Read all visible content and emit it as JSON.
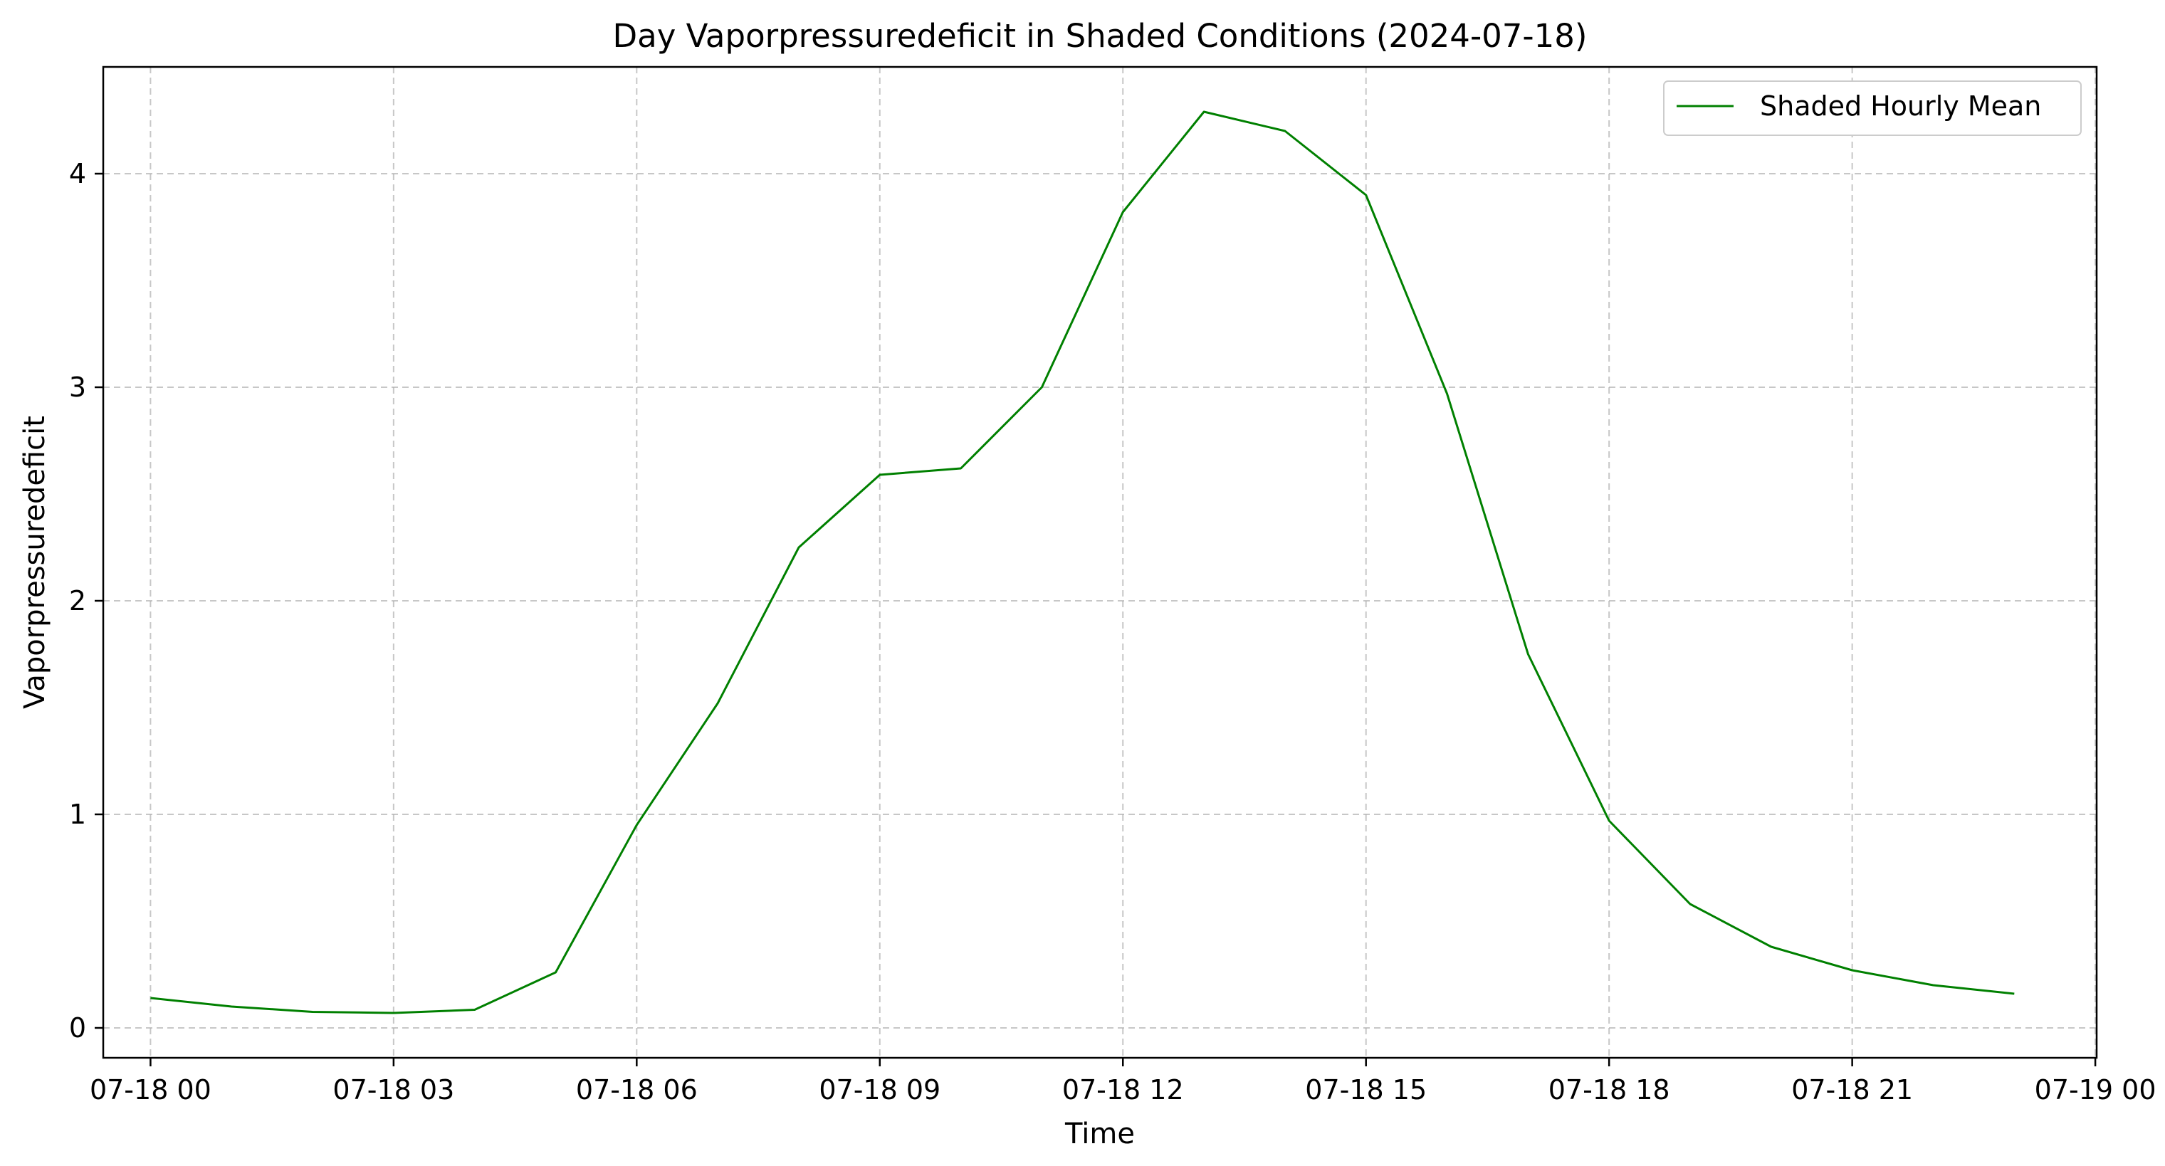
{
  "chart_data": {
    "type": "line",
    "title": "Day Vaporpressuredeficit in Shaded Conditions (2024-07-18)",
    "xlabel": "Time",
    "ylabel": "Vaporpressuredeficit",
    "xlim": [
      "2024-07-17 23:25",
      "2024-07-19 00:01"
    ],
    "ylim": [
      -0.14,
      4.5
    ],
    "x_ticks": [
      "07-18 00",
      "07-18 03",
      "07-18 06",
      "07-18 09",
      "07-18 12",
      "07-18 15",
      "07-18 18",
      "07-18 21",
      "07-19 00"
    ],
    "y_ticks": [
      "0",
      "1",
      "2",
      "3",
      "4"
    ],
    "grid": true,
    "legend": "top-right",
    "series": [
      {
        "name": "Shaded Hourly Mean",
        "color": "#008000",
        "x": [
          "2024-07-18 00:00",
          "2024-07-18 01:00",
          "2024-07-18 02:00",
          "2024-07-18 03:00",
          "2024-07-18 04:00",
          "2024-07-18 05:00",
          "2024-07-18 06:00",
          "2024-07-18 07:00",
          "2024-07-18 08:00",
          "2024-07-18 09:00",
          "2024-07-18 10:00",
          "2024-07-18 11:00",
          "2024-07-18 12:00",
          "2024-07-18 13:00",
          "2024-07-18 14:00",
          "2024-07-18 15:00",
          "2024-07-18 16:00",
          "2024-07-18 17:00",
          "2024-07-18 18:00",
          "2024-07-18 19:00",
          "2024-07-18 20:00",
          "2024-07-18 21:00",
          "2024-07-18 22:00",
          "2024-07-18 23:00"
        ],
        "values": [
          0.14,
          0.1,
          0.075,
          0.07,
          0.085,
          0.26,
          0.95,
          1.52,
          2.25,
          2.59,
          2.62,
          3.0,
          3.82,
          4.29,
          4.2,
          3.9,
          2.97,
          1.75,
          0.97,
          0.58,
          0.38,
          0.27,
          0.2,
          0.16
        ]
      }
    ]
  }
}
